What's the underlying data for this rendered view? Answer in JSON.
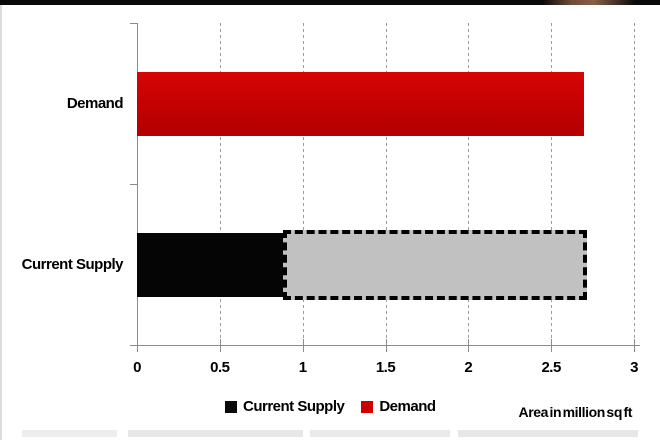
{
  "chart_data": {
    "type": "bar",
    "orientation": "horizontal",
    "title": "",
    "categories": [
      "Demand",
      "Current Supply"
    ],
    "bars": [
      {
        "category": "Demand",
        "series": "Demand",
        "start": 0,
        "end": 2.7,
        "fill": "#c40000",
        "style": "solid-red"
      },
      {
        "category": "Current Supply",
        "series": "Current Supply",
        "start": 0,
        "end": 0.9,
        "fill": "#050505",
        "style": "solid-black"
      },
      {
        "category": "Current Supply",
        "series": "",
        "start": 0.9,
        "end": 2.7,
        "fill": "#c1c1c1",
        "style": "dashed",
        "outline_color": "#000000"
      }
    ],
    "x_ticks": [
      {
        "value": 0,
        "label": "0"
      },
      {
        "value": 0.5,
        "label": "0.5"
      },
      {
        "value": 1,
        "label": "1"
      },
      {
        "value": 1.5,
        "label": "1.5"
      },
      {
        "value": 2,
        "label": "2"
      },
      {
        "value": 2.5,
        "label": "2.5"
      },
      {
        "value": 3,
        "label": "3"
      }
    ],
    "xlim": [
      0,
      3
    ],
    "xlabel": "Area in million sq ft",
    "grid": {
      "vertical": true,
      "style": "dashed",
      "interval": 0.5
    },
    "legend": [
      {
        "label": "Current Supply",
        "color": "#0a0a0a"
      },
      {
        "label": "Demand",
        "color": "#cc0000"
      }
    ],
    "legend_position": "bottom"
  },
  "colors": {
    "demand_bar": "#c40000",
    "supply_bar": "#000000",
    "dashed_bar_fill": "#c1c1c1",
    "axis": "#8c8c8c",
    "top_border": "#000000"
  }
}
